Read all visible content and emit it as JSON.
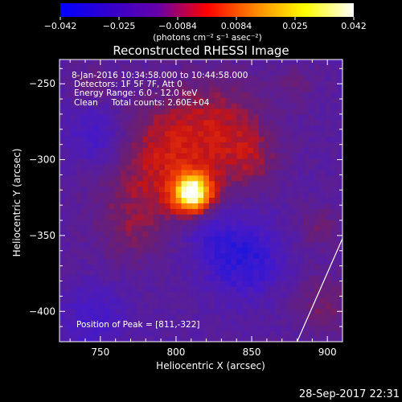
{
  "chart_data": {
    "type": "heatmap",
    "title": "Reconstructed RHESSI Image",
    "xlabel": "Heliocentric X (arcsec)",
    "ylabel": "Heliocentric Y (arcsec)",
    "xlim": [
      723,
      910
    ],
    "ylim": [
      -420,
      -234
    ],
    "x_ticks": [
      750,
      800,
      850,
      900
    ],
    "y_ticks": [
      -250,
      -300,
      -350,
      -400
    ],
    "x_tick_labels": [
      "750",
      "800",
      "850",
      "900"
    ],
    "y_tick_labels": [
      "−250",
      "−300",
      "−350",
      "−400"
    ],
    "colorbar": {
      "range": [
        -0.042,
        0.042
      ],
      "ticks": [
        "−0.042",
        "−0.025",
        "−0.0084",
        "0.0084",
        "0.025",
        "0.042"
      ],
      "unit_label": "(photons cm⁻² s⁻¹ asec⁻²)",
      "colors": [
        "#0000ff",
        "#3300cc",
        "#6600aa",
        "#ff0000",
        "#ff8800",
        "#ffff00",
        "#ffffff"
      ]
    },
    "info_lines": [
      "8-Jan-2016 10:34:58.000 to 10:44:58.000",
      "Detectors: 1F 5F 7F, Att 0",
      "Energy Range: 6.0 - 12.0 keV",
      "Clean     Total counts: 2.60E+04"
    ],
    "peak_label": "Position of Peak = [811,-322]",
    "peak": {
      "x": 811,
      "y": -322,
      "value": 0.042
    },
    "grid": false,
    "limb_line": [
      [
        880,
        -420
      ],
      [
        910,
        -352
      ]
    ]
  },
  "footer": {
    "timestamp": "28-Sep-2017 22:31"
  }
}
